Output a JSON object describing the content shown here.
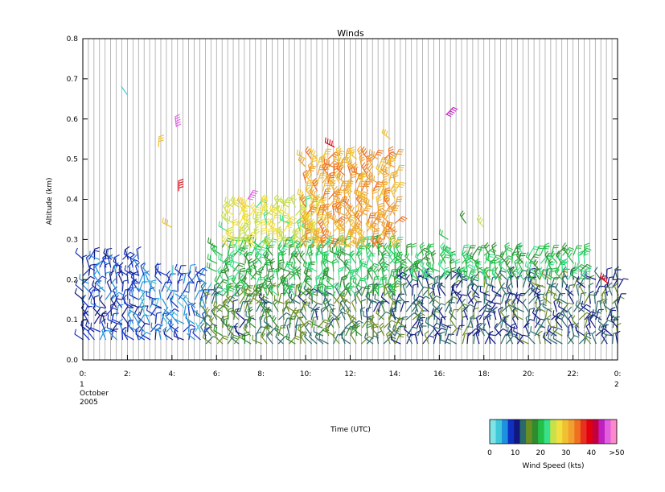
{
  "chart_data": {
    "type": "wind-barb",
    "title": "Winds",
    "ylabel": "Altitude (km)",
    "xlabel": "Time (UTC)",
    "x_unit": "hours UTC",
    "xlim": [
      0,
      24
    ],
    "ylim": [
      0.0,
      0.8
    ],
    "y_ticks": [
      "0.0",
      "0.1",
      "0.2",
      "0.3",
      "0.4",
      "0.5",
      "0.6",
      "0.7",
      "0.8"
    ],
    "x_ticks": [
      {
        "hour": 0,
        "label": "0:"
      },
      {
        "hour": 2,
        "label": "2:"
      },
      {
        "hour": 4,
        "label": "4:"
      },
      {
        "hour": 6,
        "label": "6:"
      },
      {
        "hour": 8,
        "label": "8:"
      },
      {
        "hour": 10,
        "label": "10:"
      },
      {
        "hour": 12,
        "label": "12:"
      },
      {
        "hour": 14,
        "label": "14:"
      },
      {
        "hour": 16,
        "label": "16:"
      },
      {
        "hour": 18,
        "label": "18:"
      },
      {
        "hour": 20,
        "label": "20:"
      },
      {
        "hour": 22,
        "label": "22:"
      },
      {
        "hour": 24,
        "label": "0:"
      }
    ],
    "date_start": [
      "1",
      "October",
      "2005"
    ],
    "date_end": [
      "2"
    ],
    "profile_interval_hours": 0.25,
    "colorbar": {
      "title": "Wind Speed (kts)",
      "tick_labels": [
        "0",
        "10",
        "20",
        "30",
        "40",
        ">50"
      ],
      "colors": [
        "#7fe3e8",
        "#3fc8d8",
        "#1e90e0",
        "#1030c0",
        "#101880",
        "#2a6a6a",
        "#6b8e23",
        "#2e8b2e",
        "#22c048",
        "#38e08a",
        "#c8e04a",
        "#f0e040",
        "#f0c030",
        "#f0a030",
        "#f07020",
        "#e83020",
        "#e00010",
        "#c00040",
        "#c020c0",
        "#e060e0",
        "#ff88c8"
      ]
    },
    "series": [
      {
        "time_range": [
          0.0,
          2.5
        ],
        "altitude_range": [
          0.05,
          0.25
        ],
        "speed_kts": 8
      },
      {
        "time_range": [
          2.5,
          5.5
        ],
        "altitude_range": [
          0.05,
          0.22
        ],
        "speed_kts": 6
      },
      {
        "time_range": [
          5.5,
          14.0
        ],
        "altitude_range": [
          0.04,
          0.16
        ],
        "speed_kts": 14
      },
      {
        "time_range": [
          6.0,
          14.0
        ],
        "altitude_range": [
          0.16,
          0.28
        ],
        "speed_kts": 20
      },
      {
        "time_range": [
          6.5,
          10.5
        ],
        "altitude_range": [
          0.28,
          0.38
        ],
        "speed_kts": 26
      },
      {
        "time_range": [
          10.0,
          14.0
        ],
        "altitude_range": [
          0.28,
          0.5
        ],
        "speed_kts": 32
      },
      {
        "time_range": [
          14.0,
          24.0
        ],
        "altitude_range": [
          0.04,
          0.2
        ],
        "speed_kts": 12
      },
      {
        "time_range": [
          14.0,
          22.5
        ],
        "altitude_range": [
          0.2,
          0.26
        ],
        "speed_kts": 20
      }
    ],
    "isolated": [
      {
        "time": 2.0,
        "altitude": 0.66,
        "speed_kts": 3
      },
      {
        "time": 3.4,
        "altitude": 0.53,
        "speed_kts": 30
      },
      {
        "time": 4.2,
        "altitude": 0.58,
        "speed_kts": 48
      },
      {
        "time": 4.3,
        "altitude": 0.42,
        "speed_kts": 40
      },
      {
        "time": 4.0,
        "altitude": 0.33,
        "speed_kts": 30
      },
      {
        "time": 7.4,
        "altitude": 0.4,
        "speed_kts": 48
      },
      {
        "time": 11.3,
        "altitude": 0.53,
        "speed_kts": 40
      },
      {
        "time": 13.8,
        "altitude": 0.55,
        "speed_kts": 30
      },
      {
        "time": 16.3,
        "altitude": 0.61,
        "speed_kts": 45
      },
      {
        "time": 16.4,
        "altitude": 0.3,
        "speed_kts": 20
      },
      {
        "time": 17.2,
        "altitude": 0.34,
        "speed_kts": 18
      },
      {
        "time": 18.0,
        "altitude": 0.33,
        "speed_kts": 26
      },
      {
        "time": 23.6,
        "altitude": 0.19,
        "speed_kts": 40
      }
    ]
  }
}
